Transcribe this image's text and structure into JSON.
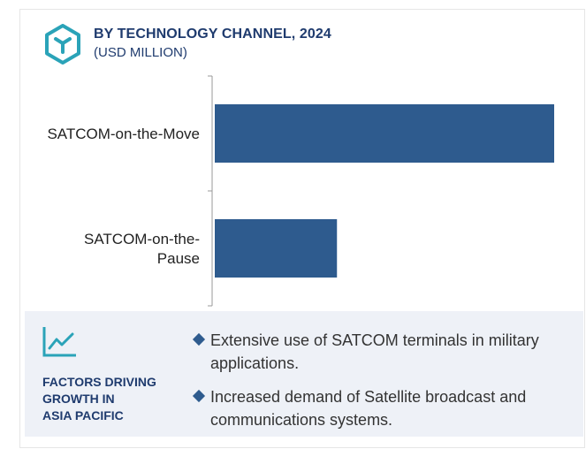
{
  "header": {
    "title": "BY TECHNOLOGY CHANNEL, 2024",
    "subtitle": "(USD MILLION)",
    "logo_icon": "cube-hexagon-icon",
    "accent_color": "#2aa3b8"
  },
  "chart_data": {
    "type": "bar",
    "orientation": "horizontal",
    "categories": [
      "SATCOM-on-the-Move",
      "SATCOM-on-the-Pause"
    ],
    "values": [
      100,
      36
    ],
    "bar_color": "#2e5b8e",
    "xlim": [
      0,
      100
    ],
    "grid": false,
    "legend": "none",
    "value_labels": false
  },
  "factors": {
    "icon": "line-chart-icon",
    "title_lines": [
      "FACTORS DRIVING",
      "GROWTH IN",
      "ASIA PACIFIC"
    ],
    "bullets": [
      "Extensive use of SATCOM terminals in military applications.",
      "Increased demand of Satellite broadcast and communications systems."
    ]
  }
}
